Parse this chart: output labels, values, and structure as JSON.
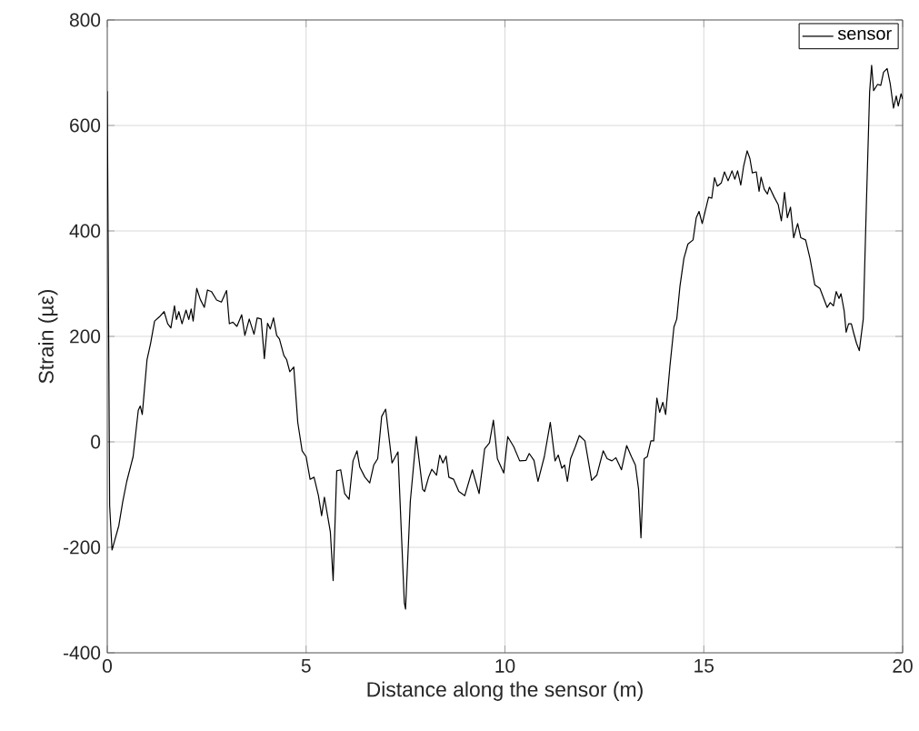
{
  "chart_data": {
    "type": "line",
    "xlabel": "Distance along the sensor (m)",
    "ylabel": "Strain (µε)",
    "xlim": [
      0,
      20
    ],
    "ylim": [
      -400,
      800
    ],
    "xticks": [
      0,
      5,
      10,
      15,
      20
    ],
    "yticks": [
      -400,
      -200,
      0,
      200,
      400,
      600,
      800
    ],
    "grid": true,
    "legend": "top right",
    "marker": "none",
    "line_style": "solid",
    "series": [
      {
        "name": "sensor",
        "color": "#000000",
        "x": [
          0,
          0.06,
          0.12,
          0.29,
          0.39,
          0.49,
          0.65,
          0.78,
          0.83,
          0.88,
          1.0,
          1.09,
          1.19,
          1.31,
          1.43,
          1.52,
          1.6,
          1.69,
          1.74,
          1.8,
          1.88,
          1.98,
          2.05,
          2.11,
          2.16,
          2.25,
          2.34,
          2.44,
          2.52,
          2.62,
          2.75,
          2.87,
          3.0,
          3.07,
          3.16,
          3.26,
          3.38,
          3.46,
          3.57,
          3.69,
          3.77,
          3.87,
          3.95,
          4.03,
          4.1,
          4.18,
          4.26,
          4.33,
          4.44,
          4.51,
          4.59,
          4.69,
          4.79,
          4.9,
          5.0,
          5.1,
          5.2,
          5.31,
          5.39,
          5.46,
          5.61,
          5.68,
          5.77,
          5.87,
          5.97,
          6.08,
          6.18,
          6.28,
          6.35,
          6.48,
          6.6,
          6.7,
          6.8,
          6.9,
          7.0,
          7.16,
          7.31,
          7.47,
          7.5,
          7.62,
          7.77,
          7.93,
          7.98,
          8.08,
          8.16,
          8.28,
          8.36,
          8.44,
          8.52,
          8.59,
          8.71,
          8.84,
          8.99,
          9.18,
          9.35,
          9.49,
          9.61,
          9.71,
          9.81,
          9.97,
          10.07,
          10.22,
          10.37,
          10.53,
          10.61,
          10.73,
          10.83,
          10.99,
          11.14,
          11.26,
          11.34,
          11.43,
          11.5,
          11.57,
          11.65,
          11.77,
          11.87,
          12.01,
          12.18,
          12.31,
          12.47,
          12.57,
          12.69,
          12.79,
          12.93,
          13.06,
          13.18,
          13.28,
          13.36,
          13.42,
          13.5,
          13.58,
          13.67,
          13.74,
          13.82,
          13.89,
          13.97,
          14.04,
          14.15,
          14.25,
          14.32,
          14.4,
          14.5,
          14.6,
          14.73,
          14.81,
          14.88,
          14.96,
          15.12,
          15.2,
          15.27,
          15.34,
          15.44,
          15.52,
          15.61,
          15.71,
          15.78,
          15.85,
          15.93,
          16.0,
          16.09,
          16.16,
          16.22,
          16.32,
          16.39,
          16.44,
          16.52,
          16.6,
          16.65,
          16.77,
          16.87,
          16.95,
          17.03,
          17.1,
          17.18,
          17.26,
          17.36,
          17.44,
          17.56,
          17.67,
          17.79,
          17.92,
          18.1,
          18.18,
          18.26,
          18.33,
          18.4,
          18.45,
          18.53,
          18.58,
          18.64,
          18.71,
          18.77,
          18.84,
          18.91,
          19.01,
          19.09,
          19.17,
          19.22,
          19.27,
          19.37,
          19.45,
          19.52,
          19.61,
          19.69,
          19.77,
          19.84,
          19.89,
          19.96,
          20.0
        ],
        "values": [
          665,
          -121,
          -205,
          -159,
          -113,
          -75,
          -28,
          60,
          68,
          52,
          156,
          187,
          229,
          237,
          247,
          224,
          216,
          258,
          232,
          247,
          224,
          250,
          232,
          252,
          229,
          291,
          270,
          255,
          288,
          285,
          269,
          265,
          287,
          224,
          227,
          219,
          241,
          202,
          233,
          204,
          235,
          233,
          158,
          225,
          214,
          235,
          202,
          195,
          164,
          156,
          133,
          142,
          37,
          -17,
          -28,
          -71,
          -67,
          -102,
          -140,
          -105,
          -171,
          -263,
          -55,
          -53,
          -98,
          -109,
          -36,
          -17,
          -48,
          -67,
          -78,
          -44,
          -32,
          48,
          62,
          -40,
          -19,
          -305,
          -317,
          -113,
          10,
          -90,
          -94,
          -67,
          -52,
          -63,
          -25,
          -40,
          -27,
          -67,
          -71,
          -94,
          -102,
          -53,
          -98,
          -13,
          -2,
          41,
          -32,
          -59,
          10,
          -9,
          -36,
          -35,
          -22,
          -35,
          -75,
          -28,
          37,
          -36,
          -25,
          -50,
          -44,
          -75,
          -32,
          -9,
          12,
          2,
          -73,
          -63,
          -17,
          -32,
          -36,
          -30,
          -53,
          -7,
          -28,
          -44,
          -90,
          -182,
          -32,
          -28,
          2,
          2,
          83,
          56,
          75,
          52,
          145,
          218,
          233,
          295,
          348,
          375,
          383,
          425,
          437,
          414,
          464,
          462,
          501,
          485,
          491,
          512,
          495,
          514,
          498,
          514,
          487,
          522,
          552,
          537,
          510,
          512,
          475,
          502,
          479,
          470,
          483,
          464,
          450,
          419,
          473,
          425,
          445,
          387,
          414,
          387,
          383,
          348,
          298,
          291,
          255,
          264,
          258,
          285,
          272,
          281,
          248,
          208,
          224,
          224,
          206,
          187,
          173,
          233,
          456,
          664,
          714,
          666,
          678,
          676,
          701,
          708,
          678,
          633,
          656,
          637,
          660,
          650
        ]
      }
    ]
  }
}
